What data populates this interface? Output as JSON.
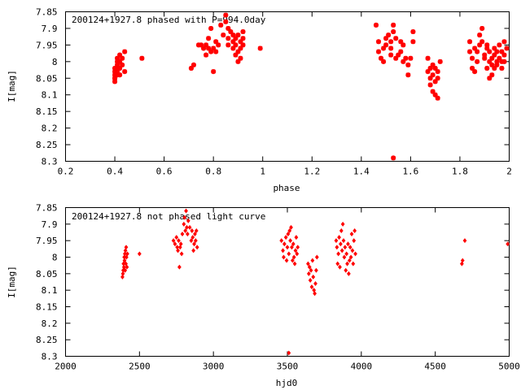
{
  "chart_data": [
    {
      "type": "scatter",
      "title": "200124+1927.8 phased with P=994.0day",
      "xlabel": "phase",
      "ylabel": "I[mag]",
      "xlim": [
        0.2,
        2.0
      ],
      "ylim": [
        7.85,
        8.3
      ],
      "y_inverted": true,
      "grid": false,
      "marker": "star",
      "color": "#ff0000",
      "xticks": [
        "0.2",
        "0.4",
        "0.6",
        "0.8",
        "1",
        "1.2",
        "1.4",
        "1.6",
        "1.8",
        "2"
      ],
      "yticks": [
        "7.85",
        "7.9",
        "7.95",
        "8",
        "8.05",
        "8.1",
        "8.15",
        "8.2",
        "8.25",
        "8.3"
      ],
      "points": [
        [
          0.4,
          8.06
        ],
        [
          0.4,
          8.05
        ],
        [
          0.4,
          8.04
        ],
        [
          0.4,
          8.03
        ],
        [
          0.4,
          8.02
        ],
        [
          0.4,
          8.05
        ],
        [
          0.41,
          8.03
        ],
        [
          0.41,
          8.01
        ],
        [
          0.41,
          8.0
        ],
        [
          0.41,
          7.99
        ],
        [
          0.41,
          8.04
        ],
        [
          0.41,
          8.02
        ],
        [
          0.42,
          8.0
        ],
        [
          0.42,
          7.98
        ],
        [
          0.42,
          8.02
        ],
        [
          0.42,
          8.04
        ],
        [
          0.43,
          8.01
        ],
        [
          0.43,
          7.99
        ],
        [
          0.44,
          7.97
        ],
        [
          0.44,
          8.03
        ],
        [
          0.51,
          7.99
        ],
        [
          0.71,
          8.02
        ],
        [
          0.72,
          8.01
        ],
        [
          0.74,
          7.95
        ],
        [
          0.75,
          7.95
        ],
        [
          0.76,
          7.96
        ],
        [
          0.77,
          7.95
        ],
        [
          0.77,
          7.98
        ],
        [
          0.78,
          7.96
        ],
        [
          0.78,
          7.93
        ],
        [
          0.79,
          7.97
        ],
        [
          0.79,
          7.9
        ],
        [
          0.8,
          8.03
        ],
        [
          0.8,
          7.96
        ],
        [
          0.81,
          7.97
        ],
        [
          0.81,
          7.94
        ],
        [
          0.82,
          7.95
        ],
        [
          0.83,
          7.89
        ],
        [
          0.84,
          7.92
        ],
        [
          0.85,
          7.86
        ],
        [
          0.85,
          7.88
        ],
        [
          0.86,
          7.9
        ],
        [
          0.86,
          7.93
        ],
        [
          0.86,
          7.95
        ],
        [
          0.87,
          7.91
        ],
        [
          0.88,
          7.92
        ],
        [
          0.88,
          7.94
        ],
        [
          0.88,
          7.96
        ],
        [
          0.89,
          7.93
        ],
        [
          0.89,
          7.95
        ],
        [
          0.89,
          7.98
        ],
        [
          0.9,
          7.97
        ],
        [
          0.9,
          8.0
        ],
        [
          0.9,
          7.92
        ],
        [
          0.91,
          7.94
        ],
        [
          0.91,
          7.99
        ],
        [
          0.91,
          7.96
        ],
        [
          0.92,
          7.93
        ],
        [
          0.92,
          7.95
        ],
        [
          0.92,
          7.91
        ],
        [
          0.99,
          7.96
        ],
        [
          1.46,
          7.89
        ],
        [
          1.47,
          7.94
        ],
        [
          1.47,
          7.97
        ],
        [
          1.48,
          7.99
        ],
        [
          1.49,
          7.96
        ],
        [
          1.49,
          8.0
        ],
        [
          1.5,
          7.95
        ],
        [
          1.5,
          7.93
        ],
        [
          1.51,
          7.92
        ],
        [
          1.52,
          7.94
        ],
        [
          1.52,
          7.96
        ],
        [
          1.52,
          7.98
        ],
        [
          1.53,
          7.91
        ],
        [
          1.53,
          7.89
        ],
        [
          1.53,
          8.29
        ],
        [
          1.54,
          7.93
        ],
        [
          1.54,
          7.99
        ],
        [
          1.55,
          7.98
        ],
        [
          1.56,
          7.97
        ],
        [
          1.56,
          7.94
        ],
        [
          1.57,
          8.0
        ],
        [
          1.57,
          7.95
        ],
        [
          1.58,
          7.99
        ],
        [
          1.59,
          8.01
        ],
        [
          1.59,
          8.04
        ],
        [
          1.6,
          7.99
        ],
        [
          1.61,
          7.91
        ],
        [
          1.61,
          7.94
        ],
        [
          1.67,
          8.03
        ],
        [
          1.67,
          7.99
        ],
        [
          1.68,
          8.05
        ],
        [
          1.68,
          8.07
        ],
        [
          1.68,
          8.02
        ],
        [
          1.69,
          8.09
        ],
        [
          1.69,
          8.01
        ],
        [
          1.69,
          8.04
        ],
        [
          1.7,
          8.1
        ],
        [
          1.7,
          8.06
        ],
        [
          1.7,
          8.02
        ],
        [
          1.71,
          8.11
        ],
        [
          1.71,
          8.03
        ],
        [
          1.71,
          8.05
        ],
        [
          1.72,
          8.0
        ],
        [
          1.84,
          7.94
        ],
        [
          1.84,
          7.97
        ],
        [
          1.85,
          8.02
        ],
        [
          1.85,
          7.99
        ],
        [
          1.86,
          7.96
        ],
        [
          1.86,
          8.03
        ],
        [
          1.87,
          8.0
        ],
        [
          1.87,
          7.97
        ],
        [
          1.88,
          7.92
        ],
        [
          1.88,
          7.95
        ],
        [
          1.89,
          7.94
        ],
        [
          1.89,
          7.9
        ],
        [
          1.9,
          7.98
        ],
        [
          1.9,
          7.99
        ],
        [
          1.91,
          7.96
        ],
        [
          1.91,
          8.02
        ],
        [
          1.91,
          7.95
        ],
        [
          1.92,
          8.05
        ],
        [
          1.92,
          8.0
        ],
        [
          1.92,
          7.97
        ],
        [
          1.93,
          7.99
        ],
        [
          1.93,
          8.04
        ],
        [
          1.93,
          8.01
        ],
        [
          1.94,
          7.98
        ],
        [
          1.94,
          8.02
        ],
        [
          1.94,
          7.96
        ],
        [
          1.95,
          8.0
        ],
        [
          1.95,
          7.97
        ],
        [
          1.95,
          8.01
        ],
        [
          1.96,
          7.99
        ],
        [
          1.96,
          7.95
        ],
        [
          1.97,
          8.0
        ],
        [
          1.97,
          7.97
        ],
        [
          1.97,
          8.02
        ],
        [
          1.98,
          7.94
        ],
        [
          1.98,
          7.98
        ],
        [
          1.98,
          8.0
        ],
        [
          1.99,
          7.96
        ]
      ]
    },
    {
      "type": "scatter",
      "title": "200124+1927.8 not phased light curve",
      "xlabel": "hjd0",
      "ylabel": "I[mag]",
      "xlim": [
        2000,
        5000
      ],
      "ylim": [
        7.85,
        8.3
      ],
      "y_inverted": true,
      "grid": false,
      "marker": "diamond",
      "color": "#ff0000",
      "xticks": [
        "2000",
        "2500",
        "3000",
        "3500",
        "4000",
        "4500",
        "5000"
      ],
      "yticks": [
        "7.85",
        "7.9",
        "7.95",
        "8",
        "8.05",
        "8.1",
        "8.15",
        "8.2",
        "8.25",
        "8.3"
      ],
      "points": [
        [
          2385,
          8.06
        ],
        [
          2388,
          8.05
        ],
        [
          2390,
          8.04
        ],
        [
          2392,
          8.02
        ],
        [
          2395,
          8.03
        ],
        [
          2397,
          8.0
        ],
        [
          2399,
          8.01
        ],
        [
          2401,
          7.99
        ],
        [
          2403,
          8.04
        ],
        [
          2405,
          7.98
        ],
        [
          2408,
          8.02
        ],
        [
          2410,
          7.97
        ],
        [
          2412,
          8.0
        ],
        [
          2415,
          8.03
        ],
        [
          2418,
          7.99
        ],
        [
          2500,
          7.99
        ],
        [
          2730,
          7.95
        ],
        [
          2740,
          7.96
        ],
        [
          2750,
          7.94
        ],
        [
          2755,
          7.97
        ],
        [
          2760,
          7.98
        ],
        [
          2765,
          7.95
        ],
        [
          2770,
          8.03
        ],
        [
          2775,
          7.97
        ],
        [
          2780,
          7.96
        ],
        [
          2785,
          7.99
        ],
        [
          2790,
          7.93
        ],
        [
          2800,
          7.9
        ],
        [
          2805,
          7.88
        ],
        [
          2810,
          7.92
        ],
        [
          2815,
          7.86
        ],
        [
          2820,
          7.91
        ],
        [
          2825,
          7.93
        ],
        [
          2830,
          7.89
        ],
        [
          2840,
          7.91
        ],
        [
          2850,
          7.95
        ],
        [
          2855,
          7.92
        ],
        [
          2860,
          7.94
        ],
        [
          2865,
          7.98
        ],
        [
          2870,
          7.96
        ],
        [
          2875,
          7.93
        ],
        [
          2880,
          7.95
        ],
        [
          2885,
          7.92
        ],
        [
          2890,
          7.97
        ],
        [
          3460,
          7.95
        ],
        [
          3470,
          7.98
        ],
        [
          3475,
          8.0
        ],
        [
          3480,
          7.96
        ],
        [
          3490,
          7.94
        ],
        [
          3495,
          8.01
        ],
        [
          3500,
          7.97
        ],
        [
          3505,
          7.93
        ],
        [
          3510,
          7.99
        ],
        [
          3515,
          7.92
        ],
        [
          3520,
          7.95
        ],
        [
          3525,
          7.91
        ],
        [
          3530,
          7.97
        ],
        [
          3535,
          8.01
        ],
        [
          3540,
          7.96
        ],
        [
          3545,
          8.0
        ],
        [
          3550,
          8.02
        ],
        [
          3555,
          7.98
        ],
        [
          3560,
          7.94
        ],
        [
          3565,
          7.99
        ],
        [
          3570,
          7.97
        ],
        [
          3510,
          8.29
        ],
        [
          3640,
          8.02
        ],
        [
          3645,
          8.05
        ],
        [
          3650,
          8.03
        ],
        [
          3655,
          8.07
        ],
        [
          3660,
          8.04
        ],
        [
          3665,
          8.09
        ],
        [
          3670,
          8.01
        ],
        [
          3675,
          8.06
        ],
        [
          3680,
          8.1
        ],
        [
          3685,
          8.11
        ],
        [
          3690,
          8.08
        ],
        [
          3695,
          8.04
        ],
        [
          3700,
          8.0
        ],
        [
          3830,
          7.95
        ],
        [
          3835,
          7.97
        ],
        [
          3840,
          8.02
        ],
        [
          3845,
          7.99
        ],
        [
          3850,
          7.94
        ],
        [
          3855,
          8.03
        ],
        [
          3860,
          7.96
        ],
        [
          3865,
          7.92
        ],
        [
          3870,
          7.98
        ],
        [
          3875,
          7.9
        ],
        [
          3880,
          7.95
        ],
        [
          3885,
          8.0
        ],
        [
          3890,
          7.97
        ],
        [
          3895,
          8.04
        ],
        [
          3900,
          7.99
        ],
        [
          3905,
          8.02
        ],
        [
          3910,
          7.96
        ],
        [
          3915,
          8.05
        ],
        [
          3920,
          8.01
        ],
        [
          3925,
          7.97
        ],
        [
          3930,
          8.0
        ],
        [
          3935,
          7.93
        ],
        [
          3940,
          7.98
        ],
        [
          3945,
          8.02
        ],
        [
          3950,
          7.95
        ],
        [
          3955,
          7.92
        ],
        [
          3960,
          7.99
        ],
        [
          4680,
          8.02
        ],
        [
          4685,
          8.01
        ],
        [
          4700,
          7.95
        ],
        [
          4990,
          7.96
        ]
      ]
    }
  ]
}
